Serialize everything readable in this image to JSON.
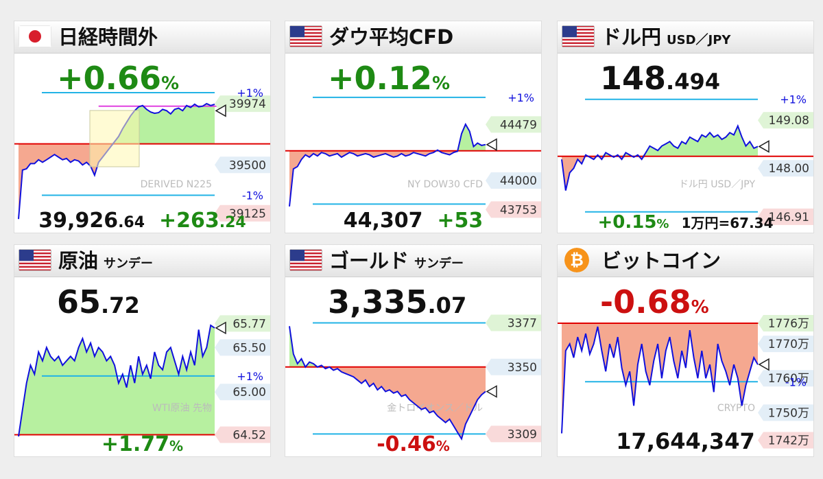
{
  "colors": {
    "up": "#1e8a14",
    "down": "#cc1010",
    "line": "#1010dd",
    "base": "#e00000",
    "band": "#22b3e6",
    "pos_fill": "#b7f0a0",
    "neg_fill": "#f5a890",
    "tag_green": "#dff4d6",
    "tag_pink": "#f9dada",
    "tag_blue": "#e3eef7"
  },
  "panels": [
    {
      "title": "日経時間外",
      "subtitle": "",
      "icon": "jp-flag-icon",
      "change": "+0.66",
      "pct": "%",
      "dir": "up",
      "footer_value": "39,926",
      "footer_dec": ".64",
      "footer_change": "+263",
      "footer_change_dec": ".24",
      "chart_data": {
        "type": "line",
        "watermark": "DERIVED N225",
        "ylim": [
          39060,
          40060
        ],
        "base": 39663,
        "band_high": 40060,
        "band_low": 39265,
        "band_labels": {
          "high": "+1%",
          "low": "-1%"
        },
        "ticks": [
          {
            "v": 39974,
            "text": "39974",
            "style": "green"
          },
          {
            "v": 39500,
            "text": "39500",
            "style": "blue"
          },
          {
            "v": 39125,
            "text": "39125",
            "style": "pink"
          }
        ],
        "marker": 39920,
        "highlight_line": 39955,
        "values": [
          39080,
          39460,
          39470,
          39510,
          39510,
          39540,
          39520,
          39540,
          39560,
          39580,
          39560,
          39540,
          39550,
          39520,
          39540,
          39530,
          39500,
          39520,
          39490,
          39420,
          39520,
          39560,
          39600,
          39640,
          39680,
          39720,
          39780,
          39830,
          39880,
          39920,
          39950,
          39960,
          39930,
          39910,
          39900,
          39905,
          39930,
          39920,
          39895,
          39930,
          39940,
          39920,
          39960,
          39945,
          39970,
          39950,
          39955,
          39975,
          39960,
          39970
        ]
      }
    },
    {
      "title": "ダウ平均CFD",
      "subtitle": "",
      "icon": "us-flag-icon",
      "change": "+0.12",
      "pct": "%",
      "dir": "up",
      "footer_value": "44,307",
      "footer_dec": "",
      "footer_change": "+53",
      "footer_change_dec": "",
      "chart_data": {
        "type": "line",
        "watermark": "NY DOW30 CFD",
        "ylim": [
          43650,
          44750
        ],
        "base": 44254,
        "band_high": 44710,
        "band_low": 43800,
        "band_labels": {
          "high": "+1%",
          "low": ""
        },
        "ticks": [
          {
            "v": 44479,
            "text": "44479",
            "style": "green"
          },
          {
            "v": 44000,
            "text": "44000",
            "style": "blue"
          },
          {
            "v": 43753,
            "text": "43753",
            "style": "pink"
          }
        ],
        "marker": 44307,
        "values": [
          43780,
          44100,
          44120,
          44180,
          44220,
          44200,
          44230,
          44210,
          44240,
          44230,
          44210,
          44220,
          44230,
          44200,
          44220,
          44240,
          44230,
          44210,
          44220,
          44230,
          44220,
          44200,
          44210,
          44220,
          44230,
          44215,
          44200,
          44210,
          44230,
          44210,
          44220,
          44240,
          44230,
          44220,
          44210,
          44230,
          44240,
          44260,
          44240,
          44230,
          44220,
          44240,
          44250,
          44400,
          44480,
          44420,
          44290,
          44320,
          44300,
          44307
        ]
      }
    },
    {
      "title": "ドル円",
      "subtitle": "USD／JPY",
      "icon": "us-flag-icon",
      "change": "148",
      "change_dec": ".494",
      "pct": "",
      "dir": "none",
      "footer_value": "",
      "footer_dec": "",
      "footer_change": "+0.15",
      "footer_change_dec": "%",
      "footer_extra": "1万円=67.34",
      "chart_data": {
        "type": "line",
        "watermark": "ドル円 USD／JPY",
        "ylim": [
          146.8,
          149.7
        ],
        "base": 148.27,
        "band_high": 149.55,
        "band_low": 147.02,
        "band_labels": {
          "high": "+1%",
          "low": ""
        },
        "ticks": [
          {
            "v": 149.08,
            "text": "149.08",
            "style": "green"
          },
          {
            "v": 148.0,
            "text": "148.00",
            "style": "blue"
          },
          {
            "v": 146.91,
            "text": "146.91",
            "style": "pink"
          }
        ],
        "marker": 148.49,
        "values": [
          148.2,
          147.5,
          147.9,
          148.0,
          148.2,
          148.1,
          148.3,
          148.25,
          148.2,
          148.3,
          148.2,
          148.35,
          148.3,
          148.25,
          148.3,
          148.2,
          148.35,
          148.3,
          148.25,
          148.3,
          148.2,
          148.35,
          148.5,
          148.45,
          148.4,
          148.5,
          148.55,
          148.6,
          148.5,
          148.45,
          148.6,
          148.55,
          148.7,
          148.65,
          148.6,
          148.75,
          148.7,
          148.8,
          148.7,
          148.75,
          148.65,
          148.7,
          148.8,
          148.75,
          148.95,
          148.7,
          148.5,
          148.6,
          148.45,
          148.49
        ]
      }
    },
    {
      "title": "原油",
      "subtitle": "サンデー",
      "icon": "us-flag-icon",
      "change": "65",
      "change_dec": ".72",
      "pct": "",
      "dir": "none",
      "footer_value": "",
      "footer_dec": "",
      "footer_change": "+1.77",
      "footer_change_dec": "%",
      "chart_data": {
        "type": "line",
        "watermark": "WTI原油 先物",
        "ylim": [
          64.4,
          65.85
        ],
        "base": 64.52,
        "band_high": null,
        "band_low": 65.18,
        "band_labels": {
          "high": "",
          "low": "+1%"
        },
        "ticks": [
          {
            "v": 65.77,
            "text": "65.77",
            "style": "green"
          },
          {
            "v": 65.5,
            "text": "65.50",
            "style": "blue"
          },
          {
            "v": 65.0,
            "text": "65.00",
            "style": "blue"
          },
          {
            "v": 64.52,
            "text": "64.52",
            "style": "pink"
          }
        ],
        "marker": 65.72,
        "values": [
          64.5,
          64.8,
          65.1,
          65.3,
          65.2,
          65.45,
          65.35,
          65.5,
          65.4,
          65.35,
          65.4,
          65.3,
          65.35,
          65.4,
          65.35,
          65.5,
          65.6,
          65.45,
          65.55,
          65.4,
          65.5,
          65.45,
          65.35,
          65.4,
          65.3,
          65.1,
          65.2,
          65.05,
          65.3,
          65.1,
          65.4,
          65.2,
          65.3,
          65.15,
          65.45,
          65.3,
          65.25,
          65.45,
          65.5,
          65.35,
          65.2,
          65.4,
          65.25,
          65.45,
          65.3,
          65.7,
          65.4,
          65.5,
          65.75,
          65.72
        ]
      }
    },
    {
      "title": "ゴールド",
      "subtitle": "サンデー",
      "icon": "us-flag-icon",
      "change": "3,335",
      "change_dec": ".07",
      "pct": "",
      "dir": "none",
      "footer_value": "",
      "footer_dec": "",
      "footer_change": "-0.46",
      "footer_change_dec": "%",
      "chart_data": {
        "type": "line",
        "watermark": "金トロイオンス／ドル",
        "ylim": [
          3302,
          3381
        ],
        "base": 3350,
        "band_high": 3377,
        "band_low": 3309,
        "band_labels": {
          "high": "",
          "low": ""
        },
        "ticks": [
          {
            "v": 3377,
            "text": "3377",
            "style": "green"
          },
          {
            "v": 3350,
            "text": "3350",
            "style": "blue"
          },
          {
            "v": 3309,
            "text": "3309",
            "style": "pink"
          }
        ],
        "marker": 3335,
        "values": [
          3375,
          3358,
          3352,
          3355,
          3350,
          3353,
          3352,
          3350,
          3351,
          3349,
          3350,
          3348,
          3349,
          3347,
          3346,
          3345,
          3344,
          3342,
          3340,
          3342,
          3338,
          3340,
          3336,
          3338,
          3335,
          3336,
          3334,
          3335,
          3332,
          3333,
          3330,
          3328,
          3326,
          3324,
          3325,
          3322,
          3323,
          3320,
          3318,
          3316,
          3318,
          3314,
          3310,
          3306,
          3315,
          3320,
          3325,
          3330,
          3333,
          3335
        ]
      }
    },
    {
      "title": "ビットコイン",
      "subtitle": "",
      "icon": "bitcoin-icon",
      "change": "-0.68",
      "pct": "%",
      "dir": "down",
      "footer_value": "17,644,347",
      "footer_dec": "",
      "footer_change": "",
      "footer_change_dec": "",
      "chart_data": {
        "type": "line",
        "watermark": "CRYPTO",
        "ylim": [
          1740.5,
          1778
        ],
        "base": 1776,
        "band_high": null,
        "band_low": 1759,
        "band_labels": {
          "high": "",
          "low": "-1%"
        },
        "ticks": [
          {
            "v": 1776,
            "text": "1776万",
            "style": "green"
          },
          {
            "v": 1770,
            "text": "1770万",
            "style": "blue"
          },
          {
            "v": 1760,
            "text": "1760万",
            "style": "blue"
          },
          {
            "v": 1750,
            "text": "1750万",
            "style": "blue"
          },
          {
            "v": 1742,
            "text": "1742万",
            "style": "pink"
          }
        ],
        "marker": 1764,
        "values": [
          1744,
          1768,
          1770,
          1766,
          1772,
          1768,
          1773,
          1767,
          1770,
          1775,
          1768,
          1762,
          1770,
          1766,
          1772,
          1763,
          1758,
          1762,
          1752,
          1764,
          1770,
          1762,
          1758,
          1765,
          1770,
          1760,
          1768,
          1772,
          1765,
          1760,
          1768,
          1763,
          1774,
          1766,
          1760,
          1768,
          1760,
          1764,
          1756,
          1770,
          1765,
          1762,
          1758,
          1764,
          1760,
          1752,
          1758,
          1762,
          1766,
          1764
        ]
      }
    }
  ]
}
